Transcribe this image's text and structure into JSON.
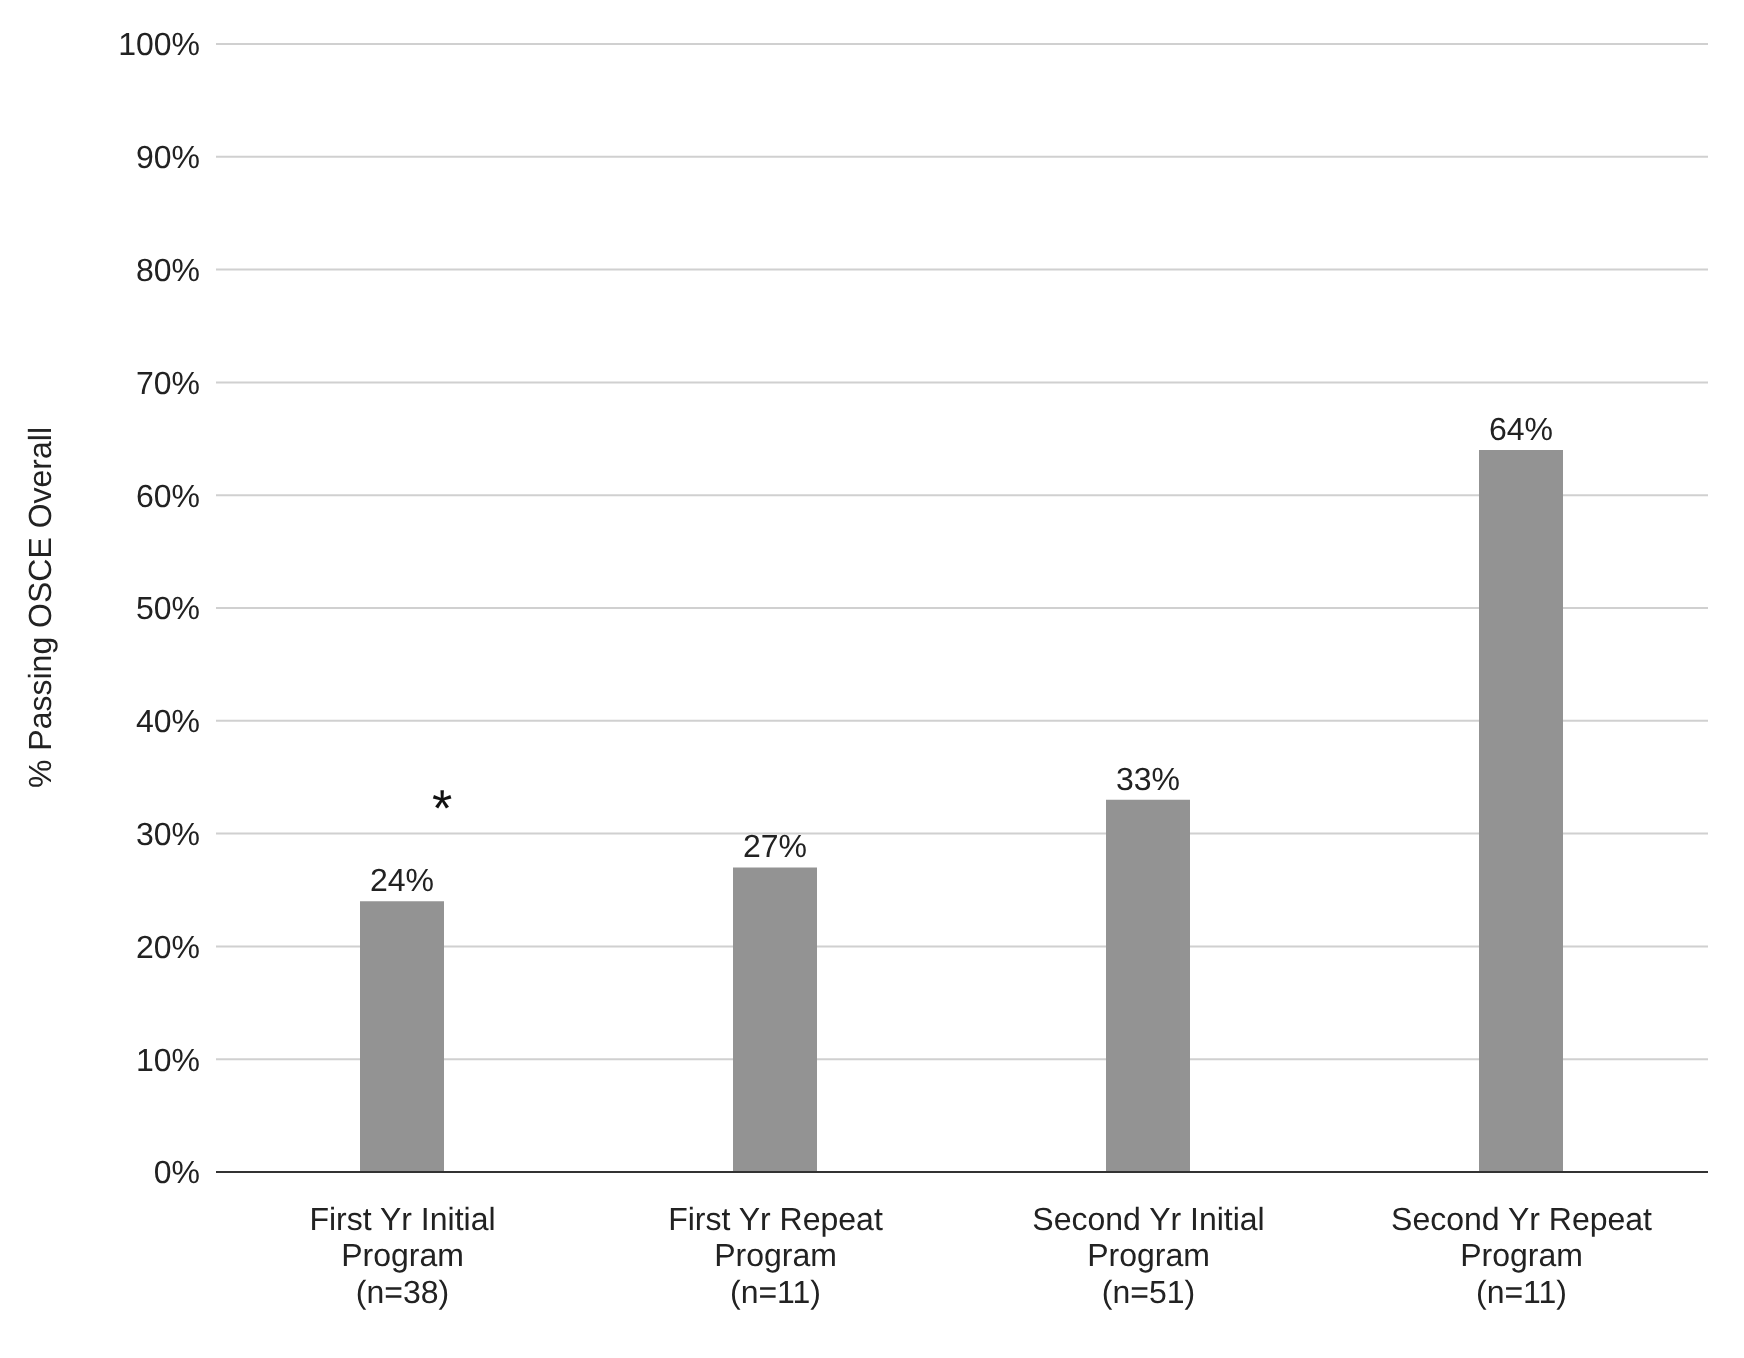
{
  "chart_data": {
    "type": "bar",
    "ylabel": "% Passing OSCE Overall",
    "categories": [
      "First Yr Initial\nProgram\n(n=38)",
      "First Yr Repeat\nProgram\n(n=11)",
      "Second Yr Initial\nProgram\n(n=51)",
      "Second Yr Repeat\nProgram\n(n=11)"
    ],
    "values": [
      24,
      27,
      33,
      64
    ],
    "color": "#939393",
    "value_labels": [
      "24%",
      "27%",
      "33%",
      "64%"
    ],
    "ylim": [
      0,
      100
    ],
    "yticks": [
      {
        "value": 0,
        "label": "0%"
      },
      {
        "value": 10,
        "label": "10%"
      },
      {
        "value": 20,
        "label": "20%"
      },
      {
        "value": 30,
        "label": "30%"
      },
      {
        "value": 40,
        "label": "40%"
      },
      {
        "value": 50,
        "label": "50%"
      },
      {
        "value": 60,
        "label": "60%"
      },
      {
        "value": 70,
        "label": "70%"
      },
      {
        "value": 80,
        "label": "80%"
      },
      {
        "value": 90,
        "label": "90%"
      },
      {
        "value": 100,
        "label": "100%"
      }
    ],
    "grid": "y",
    "legend": false,
    "annotations": [
      "*"
    ]
  }
}
